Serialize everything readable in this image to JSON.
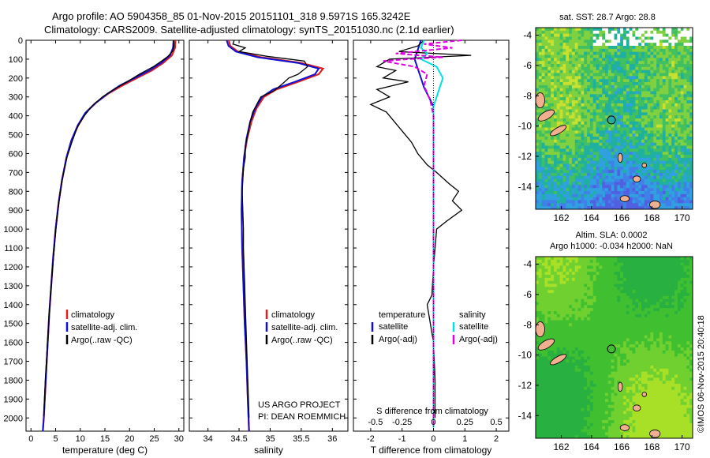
{
  "header": {
    "line1": "Argo profile: AO 5904358_85 01-Nov-2015 20151101_318 9.5971S 165.3242E",
    "line2": "Climatology: CARS2009. Satellite-adjusted climatology: synTS_20151030.nc (2.1d earlier)"
  },
  "colors": {
    "climatology": "#e02020",
    "satellite": "#1010d0",
    "argo": "#000000",
    "salinity_satellite": "#00e0e0",
    "salinity_argo": "#e000e0"
  },
  "chart_data": [
    {
      "type": "line",
      "id": "temperature",
      "xlabel": "temperature (deg C)",
      "xlim": [
        -1,
        31
      ],
      "xticks": [
        0,
        5,
        10,
        15,
        20,
        25,
        30
      ],
      "ylim": [
        0,
        2070
      ],
      "yticks": [
        0,
        100,
        200,
        300,
        400,
        500,
        600,
        700,
        800,
        900,
        1000,
        1100,
        1200,
        1300,
        1400,
        1500,
        1600,
        1700,
        1800,
        1900,
        2000
      ],
      "y_reversed": true,
      "legend": [
        "climatology",
        "satellite-adj. clim.",
        "Argo(..raw -QC)"
      ],
      "series": [
        {
          "name": "climatology",
          "color": "#e02020",
          "points": [
            [
              29.3,
              0
            ],
            [
              29.2,
              40
            ],
            [
              28.6,
              80
            ],
            [
              26.8,
              120
            ],
            [
              24.5,
              160
            ],
            [
              21.5,
              200
            ],
            [
              18.5,
              240
            ],
            [
              15.8,
              280
            ],
            [
              13.2,
              330
            ],
            [
              11.2,
              380
            ],
            [
              9.6,
              450
            ],
            [
              8.2,
              530
            ],
            [
              7.2,
              620
            ],
            [
              6.3,
              740
            ],
            [
              5.6,
              860
            ],
            [
              5.0,
              1000
            ],
            [
              4.5,
              1150
            ],
            [
              4.1,
              1300
            ],
            [
              3.7,
              1450
            ],
            [
              3.4,
              1600
            ],
            [
              3.0,
              1800
            ],
            [
              2.6,
              2000
            ],
            [
              2.4,
              2070
            ]
          ]
        },
        {
          "name": "satellite-adj. clim.",
          "color": "#1010d0",
          "points": [
            [
              28.9,
              0
            ],
            [
              28.8,
              40
            ],
            [
              28.2,
              80
            ],
            [
              26.4,
              120
            ],
            [
              24.0,
              160
            ],
            [
              21.0,
              200
            ],
            [
              18.0,
              240
            ],
            [
              15.4,
              285
            ],
            [
              13.0,
              335
            ],
            [
              11.0,
              385
            ],
            [
              9.5,
              450
            ],
            [
              8.2,
              530
            ],
            [
              7.2,
              620
            ],
            [
              6.3,
              740
            ],
            [
              5.6,
              860
            ],
            [
              5.0,
              1000
            ],
            [
              4.5,
              1150
            ],
            [
              4.1,
              1300
            ],
            [
              3.7,
              1450
            ],
            [
              3.4,
              1600
            ],
            [
              3.0,
              1800
            ],
            [
              2.6,
              2000
            ],
            [
              2.4,
              2070
            ]
          ]
        },
        {
          "name": "Argo(..raw -QC)",
          "color": "#000000",
          "points": [
            [
              29.0,
              0
            ],
            [
              29.0,
              30
            ],
            [
              28.8,
              55
            ],
            [
              27.8,
              85
            ],
            [
              26.5,
              110
            ],
            [
              24.8,
              140
            ],
            [
              22.0,
              180
            ],
            [
              19.5,
              220
            ],
            [
              16.8,
              260
            ],
            [
              14.5,
              300
            ],
            [
              12.5,
              345
            ],
            [
              10.8,
              400
            ],
            [
              9.4,
              460
            ],
            [
              8.3,
              540
            ],
            [
              7.3,
              620
            ],
            [
              6.4,
              730
            ],
            [
              5.7,
              850
            ],
            [
              5.1,
              990
            ],
            [
              4.6,
              1140
            ],
            [
              4.1,
              1300
            ],
            [
              3.7,
              1450
            ],
            [
              3.3,
              1620
            ],
            [
              2.9,
              1800
            ],
            [
              2.6,
              1990
            ]
          ]
        }
      ]
    },
    {
      "type": "line",
      "id": "salinity",
      "xlabel": "salinity",
      "xlim": [
        33.7,
        36.25
      ],
      "xticks": [
        34,
        34.5,
        35,
        35.5,
        36
      ],
      "ylim": [
        0,
        2070
      ],
      "y_reversed": true,
      "legend": [
        "climatology",
        "satellite-adj. clim.",
        "Argo(..raw -QC)"
      ],
      "annotation": [
        "US ARGO PROJECT",
        "PI: DEAN ROEMMICH"
      ],
      "series": [
        {
          "name": "climatology",
          "color": "#e02020",
          "points": [
            [
              34.33,
              0
            ],
            [
              34.36,
              30
            ],
            [
              34.48,
              60
            ],
            [
              34.85,
              90
            ],
            [
              35.5,
              120
            ],
            [
              35.85,
              150
            ],
            [
              35.78,
              180
            ],
            [
              35.45,
              220
            ],
            [
              35.1,
              260
            ],
            [
              34.9,
              300
            ],
            [
              34.78,
              360
            ],
            [
              34.7,
              430
            ],
            [
              34.63,
              520
            ],
            [
              34.58,
              620
            ],
            [
              34.55,
              750
            ],
            [
              34.54,
              900
            ],
            [
              34.55,
              1100
            ],
            [
              34.57,
              1300
            ],
            [
              34.59,
              1500
            ],
            [
              34.62,
              1700
            ],
            [
              34.64,
              1900
            ],
            [
              34.66,
              2070
            ]
          ]
        },
        {
          "name": "satellite-adj. clim.",
          "color": "#1010d0",
          "points": [
            [
              34.3,
              0
            ],
            [
              34.33,
              30
            ],
            [
              34.45,
              60
            ],
            [
              34.8,
              90
            ],
            [
              35.45,
              120
            ],
            [
              35.78,
              150
            ],
            [
              35.72,
              180
            ],
            [
              35.4,
              220
            ],
            [
              35.05,
              260
            ],
            [
              34.87,
              300
            ],
            [
              34.76,
              360
            ],
            [
              34.68,
              430
            ],
            [
              34.62,
              520
            ],
            [
              34.58,
              620
            ],
            [
              34.55,
              750
            ],
            [
              34.54,
              900
            ],
            [
              34.55,
              1100
            ],
            [
              34.57,
              1300
            ],
            [
              34.59,
              1500
            ],
            [
              34.62,
              1700
            ],
            [
              34.64,
              1900
            ],
            [
              34.66,
              2070
            ]
          ]
        },
        {
          "name": "Argo(..raw -QC)",
          "color": "#000000",
          "points": [
            [
              34.42,
              0
            ],
            [
              34.4,
              20
            ],
            [
              34.6,
              40
            ],
            [
              34.5,
              60
            ],
            [
              34.95,
              85
            ],
            [
              35.55,
              110
            ],
            [
              35.6,
              140
            ],
            [
              35.45,
              180
            ],
            [
              35.3,
              200
            ],
            [
              35.2,
              230
            ],
            [
              35.05,
              270
            ],
            [
              34.85,
              300
            ],
            [
              34.8,
              330
            ],
            [
              34.72,
              380
            ],
            [
              34.68,
              430
            ],
            [
              34.64,
              500
            ],
            [
              34.6,
              560
            ],
            [
              34.6,
              620
            ],
            [
              34.57,
              680
            ],
            [
              34.56,
              740
            ],
            [
              34.55,
              800
            ],
            [
              34.56,
              900
            ],
            [
              34.57,
              1000
            ],
            [
              34.57,
              1100
            ],
            [
              34.58,
              1200
            ],
            [
              34.59,
              1300
            ],
            [
              34.6,
              1400
            ],
            [
              34.61,
              1500
            ],
            [
              34.62,
              1600
            ],
            [
              34.63,
              1700
            ],
            [
              34.64,
              1800
            ],
            [
              34.65,
              1900
            ],
            [
              34.66,
              2000
            ]
          ]
        }
      ]
    },
    {
      "type": "line",
      "id": "difference",
      "xlabel": "T difference from climatology",
      "xlabel_top": "S difference from climatology",
      "xlim": [
        -2.55,
        2.4
      ],
      "xticks": [
        -2,
        -1,
        0,
        1,
        2
      ],
      "xticks_s": [
        "-0.5",
        "-0.25",
        "0",
        "0.25",
        "0.5"
      ],
      "xticks_s_pos": [
        -2,
        -1,
        0,
        1,
        2
      ],
      "ylim": [
        0,
        2070
      ],
      "y_reversed": true,
      "legend_t_title": "temperature",
      "legend_s_title": "salinity",
      "legend_t": [
        "satellite",
        "Argo(-adj)"
      ],
      "legend_s": [
        "satellite",
        "Argo(-adj)"
      ],
      "series": [
        {
          "name": "T satellite",
          "color": "#1010d0",
          "points": [
            [
              -0.4,
              0
            ],
            [
              -0.5,
              50
            ],
            [
              -0.6,
              100
            ],
            [
              -0.5,
              150
            ],
            [
              -0.4,
              200
            ],
            [
              -0.3,
              250
            ],
            [
              -0.15,
              300
            ],
            [
              0,
              350
            ],
            [
              0,
              2050
            ]
          ]
        },
        {
          "name": "T Argo",
          "color": "#000000",
          "points": [
            [
              -0.3,
              0
            ],
            [
              -0.5,
              30
            ],
            [
              -1.1,
              60
            ],
            [
              1.2,
              80
            ],
            [
              -1.4,
              100
            ],
            [
              -1.8,
              140
            ],
            [
              -1.2,
              160
            ],
            [
              -1.6,
              200
            ],
            [
              -0.8,
              220
            ],
            [
              -1.8,
              260
            ],
            [
              -1.4,
              300
            ],
            [
              -2.0,
              340
            ],
            [
              -1.5,
              380
            ],
            [
              -1.3,
              420
            ],
            [
              -1.0,
              480
            ],
            [
              -0.7,
              540
            ],
            [
              -0.5,
              600
            ],
            [
              -0.2,
              660
            ],
            [
              0.1,
              700
            ],
            [
              0.5,
              760
            ],
            [
              0.8,
              800
            ],
            [
              0.6,
              850
            ],
            [
              0.9,
              900
            ],
            [
              0.4,
              960
            ],
            [
              0.1,
              1000
            ],
            [
              0.05,
              1100
            ],
            [
              0,
              1200
            ],
            [
              -0.05,
              1350
            ],
            [
              -0.2,
              1400
            ],
            [
              -0.1,
              1500
            ],
            [
              0,
              1600
            ],
            [
              0.05,
              1800
            ],
            [
              0.05,
              2000
            ]
          ]
        },
        {
          "name": "S satellite",
          "color": "#00e0e0",
          "points": [
            [
              -0.3,
              0
            ],
            [
              -0.4,
              40
            ],
            [
              -0.2,
              70
            ],
            [
              -0.4,
              100
            ],
            [
              0.1,
              140
            ],
            [
              0.3,
              200
            ],
            [
              0.2,
              250
            ],
            [
              0.1,
              300
            ],
            [
              0,
              350
            ],
            [
              0,
              2050
            ]
          ]
        },
        {
          "name": "S Argo",
          "color": "#e000e0",
          "points": [
            [
              0.9,
              0
            ],
            [
              -0.3,
              20
            ],
            [
              0.6,
              40
            ],
            [
              -1.2,
              70
            ],
            [
              0.3,
              90
            ],
            [
              -0.8,
              100
            ],
            [
              -1.6,
              110
            ],
            [
              -0.6,
              140
            ],
            [
              -0.2,
              180
            ],
            [
              -0.3,
              240
            ],
            [
              -0.1,
              320
            ],
            [
              0,
              400
            ],
            [
              0,
              2050
            ]
          ]
        }
      ]
    },
    {
      "type": "heatmap",
      "id": "sst-map",
      "title": "sat. SST: 28.7 Argo: 28.8",
      "xticks": [
        162,
        164,
        166,
        168,
        170
      ],
      "yticks": [
        -4,
        -6,
        -8,
        -10,
        -12,
        -14
      ],
      "xlim": [
        160.3,
        170.7
      ],
      "ylim": [
        -15.5,
        -3.5
      ],
      "marker": {
        "lon": 165.32,
        "lat": -9.6
      }
    },
    {
      "type": "heatmap",
      "id": "sla-map",
      "title_line1": "Altim. SLA: 0.0002",
      "title_line2": "Argo h1000: -0.034 h2000: NaN",
      "xticks": [
        162,
        164,
        166,
        168,
        170
      ],
      "yticks": [
        -4,
        -6,
        -8,
        -10,
        -12,
        -14
      ],
      "xlim": [
        160.3,
        170.7
      ],
      "ylim": [
        -15.5,
        -3.5
      ],
      "marker": {
        "lon": 165.32,
        "lat": -9.6
      }
    }
  ],
  "footer": {
    "ylabel_depth_ticks_note": "",
    "credit": "©IMOS 06-Nov-2015 20:40:18"
  }
}
